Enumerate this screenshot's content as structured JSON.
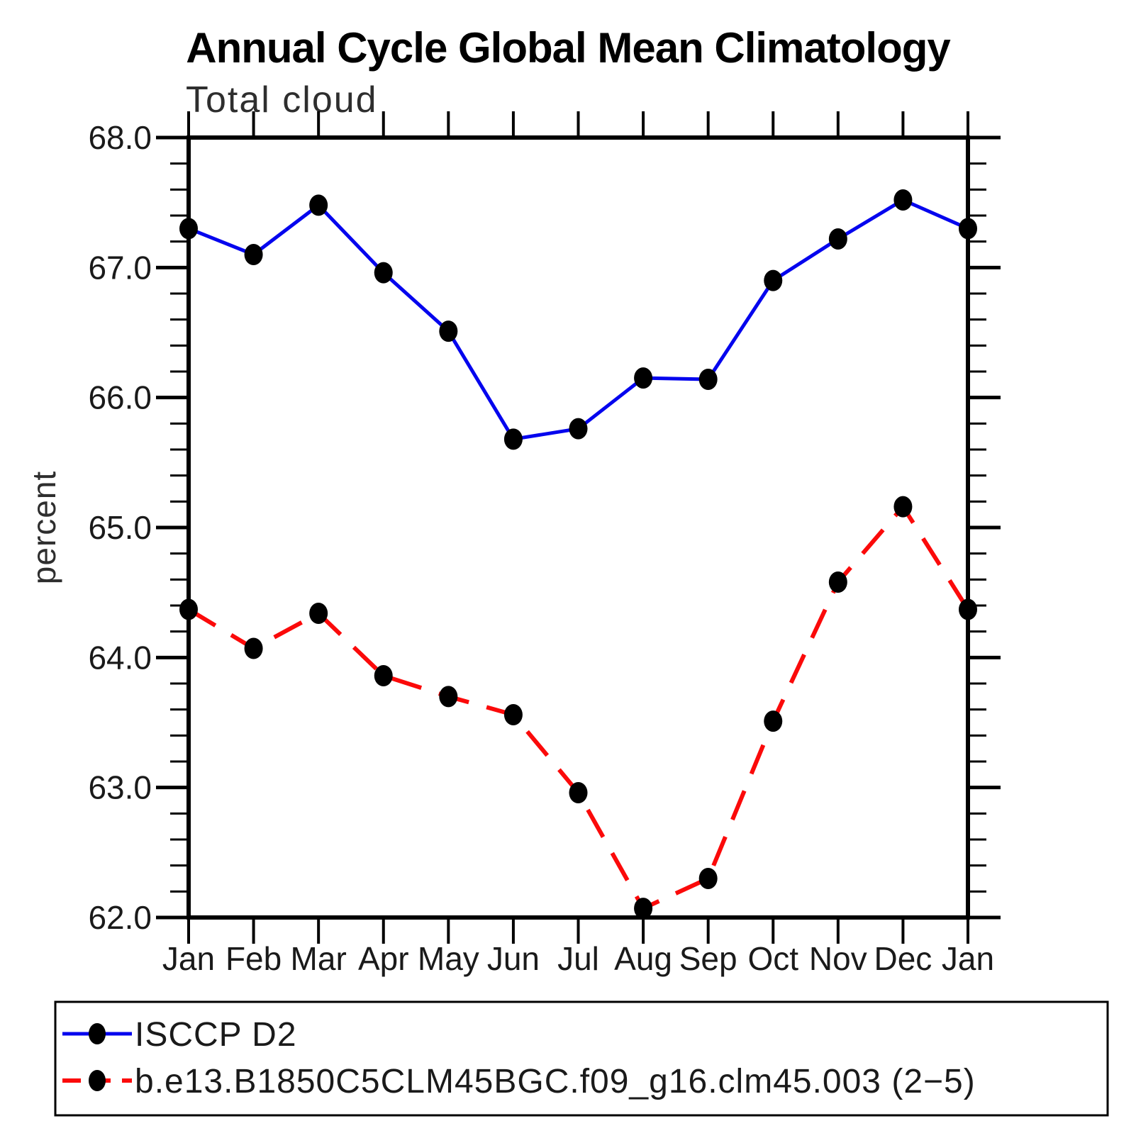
{
  "title": "Annual Cycle Global Mean Climatology",
  "subtitle": "Total cloud",
  "chart_data": {
    "type": "line",
    "title": "Annual Cycle Global Mean Climatology",
    "subtitle": "Total cloud",
    "xlabel": "",
    "ylabel": "percent",
    "ylim": [
      62.0,
      68.0
    ],
    "y_major_tick_values": [
      62.0,
      63.0,
      64.0,
      65.0,
      66.0,
      67.0,
      68.0
    ],
    "y_tick_labels": [
      "62.0",
      "63.0",
      "64.0",
      "65.0",
      "66.0",
      "67.0",
      "68.0"
    ],
    "y_minor_step": 0.2,
    "grid": false,
    "legend_position": "bottom-left-box",
    "x_tick_labels": [
      "Jan",
      "Feb",
      "Mar",
      "Apr",
      "May",
      "Jun",
      "Jul",
      "Aug",
      "Sep",
      "Oct",
      "Nov",
      "Dec",
      "Jan"
    ],
    "series": [
      {
        "name": "ISCCP D2",
        "line_style": "solid",
        "color": "#0505EE",
        "marker": "filled-circle",
        "marker_color": "#000000",
        "values": [
          67.3,
          67.1,
          67.48,
          66.96,
          66.51,
          65.68,
          65.76,
          66.15,
          66.14,
          66.9,
          67.22,
          67.52,
          67.3
        ]
      },
      {
        "name": "b.e13.B1850C5CLM45BGC.f09_g16.clm45.003 (2−5)",
        "line_style": "dashed",
        "color": "#FB0A0A",
        "marker": "filled-circle",
        "marker_color": "#000000",
        "values": [
          64.37,
          64.07,
          64.34,
          63.86,
          63.7,
          63.56,
          62.96,
          62.07,
          62.3,
          63.51,
          64.58,
          65.16,
          64.37
        ]
      }
    ]
  }
}
